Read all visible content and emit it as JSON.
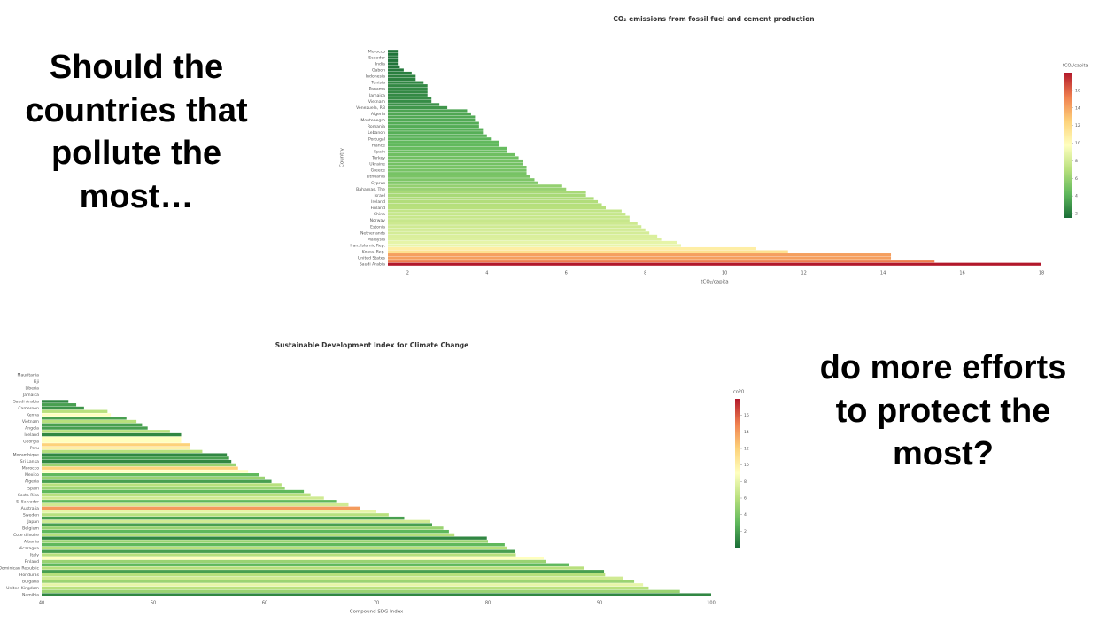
{
  "slide": {
    "left_text": "Should the countries that pollute the most…",
    "right_text": "do more efforts to protect the most?"
  },
  "chart_data": [
    {
      "type": "bar",
      "orientation": "h",
      "title": "CO₂ emissions from fossil fuel and cement production",
      "x_label": "tCO₂/capita",
      "y_label": "Country",
      "colorbar_title": "tCO₂/capita",
      "categories": [
        "Morocco",
        null,
        "Ecuador",
        null,
        "India",
        null,
        "Gabon",
        null,
        "Indonesia",
        null,
        "Tunisia",
        null,
        "Panama",
        null,
        "Jamaica",
        null,
        "Vietnam",
        null,
        "Venezuela, RB",
        null,
        "Algeria",
        null,
        "Montenegro",
        null,
        "Romania",
        null,
        "Lebanon",
        null,
        "Portugal",
        null,
        "France",
        null,
        "Spain",
        null,
        "Turkey",
        null,
        "Ukraine",
        null,
        "Greece",
        null,
        "Lithuania",
        null,
        "Cyprus",
        null,
        "Bahamas, The",
        null,
        "Israel",
        null,
        "Ireland",
        null,
        "Finland",
        null,
        "China",
        null,
        "Norway",
        null,
        "Estonia",
        null,
        "Netherlands",
        null,
        "Malaysia",
        null,
        "Iran, Islamic Rep.",
        null,
        "Korea, Rep.",
        null,
        "United States",
        null,
        "Saudi Arabia"
      ],
      "values": [
        1.75,
        1.75,
        1.75,
        1.75,
        1.75,
        1.8,
        1.9,
        2.1,
        2.2,
        2.2,
        2.4,
        2.5,
        2.5,
        2.5,
        2.5,
        2.6,
        2.6,
        2.8,
        3.0,
        3.5,
        3.6,
        3.7,
        3.7,
        3.8,
        3.8,
        3.9,
        3.9,
        4.0,
        4.1,
        4.3,
        4.3,
        4.5,
        4.5,
        4.7,
        4.8,
        4.9,
        4.9,
        5.0,
        5.0,
        5.0,
        5.1,
        5.2,
        5.3,
        5.9,
        6.0,
        6.5,
        6.5,
        6.7,
        6.8,
        6.9,
        7.0,
        7.4,
        7.5,
        7.6,
        7.6,
        7.8,
        7.9,
        8.0,
        8.1,
        8.3,
        8.4,
        8.8,
        8.9,
        10.8,
        11.6,
        14.2,
        14.2,
        15.3,
        18
      ],
      "xlim": [
        1.5,
        18
      ],
      "xticks": [
        2,
        4,
        6,
        8,
        10,
        12,
        14,
        16,
        18
      ],
      "clim": [
        1.5,
        18
      ],
      "cticks": [
        2,
        4,
        6,
        8,
        10,
        12,
        14,
        16
      ],
      "colorscale": [
        "#1a6e37",
        "#5fb85c",
        "#b8e07d",
        "#ffffbf",
        "#fdd27a",
        "#f0804f",
        "#b2182b"
      ]
    },
    {
      "type": "bar",
      "orientation": "h",
      "title": "Sustainable Development Index for Climate Change",
      "x_label": "Compound SDG Index",
      "colorbar_title": "co20",
      "categories": [
        "Mauritania",
        null,
        "Fiji",
        null,
        "Liberia",
        null,
        "Jamaica",
        null,
        "Saudi Arabia",
        null,
        "Cameroon",
        null,
        "Kenya",
        null,
        "Vietnam",
        null,
        "Angola",
        null,
        "Iceland",
        null,
        "Georgia",
        null,
        "Peru",
        null,
        "Mozambique",
        null,
        "Sri Lanka",
        null,
        "Morocco",
        null,
        "Mexico",
        null,
        "Algeria",
        null,
        "Spain",
        null,
        "Costa Rica",
        null,
        "El Salvador",
        null,
        "Australia",
        null,
        "Sweden",
        null,
        "Japan",
        null,
        "Belgium",
        null,
        "Cote d'Ivoire",
        null,
        "Albania",
        null,
        "Nicaragua",
        null,
        "Italy",
        null,
        "Finland",
        null,
        "Dominican Republic",
        null,
        "Honduras",
        null,
        "Bulgaria",
        null,
        "United Kingdom",
        null,
        "Namibia"
      ],
      "values": [
        38,
        38.5,
        39,
        39.2,
        39.5,
        39.7,
        39.9,
        40.0,
        42.4,
        43.1,
        43.8,
        45.9,
        46.2,
        47.6,
        48.5,
        49.0,
        49.5,
        51.5,
        52.5,
        52.5,
        52.5,
        53.3,
        53.3,
        54.4,
        56.6,
        56.8,
        57.0,
        57.4,
        57.6,
        58.5,
        59.5,
        60.0,
        60.6,
        61.5,
        61.8,
        63.5,
        64.1,
        65.3,
        66.4,
        67.5,
        68.5,
        70.0,
        71.1,
        72.5,
        74.8,
        75.0,
        76.0,
        76.5,
        77.0,
        79.9,
        80.0,
        81.5,
        81.7,
        82.4,
        82.5,
        85.0,
        85.2,
        87.3,
        88.6,
        90.4,
        90.5,
        92.1,
        93.1,
        93.9,
        94.4,
        97.2,
        100
      ],
      "color_values": [
        1,
        1,
        1,
        1,
        1,
        1,
        1,
        1,
        1,
        2,
        1.5,
        6,
        9,
        2,
        6,
        2,
        2,
        6,
        1,
        9,
        9,
        12,
        10,
        6,
        1,
        2,
        1,
        5,
        12,
        9,
        3,
        5,
        2,
        6,
        5,
        3,
        6,
        7,
        3,
        7,
        14,
        8,
        6,
        2,
        7,
        2,
        5,
        3,
        6,
        1,
        5,
        3,
        6,
        2,
        6,
        9,
        5,
        3,
        6,
        2,
        6,
        7,
        5,
        8,
        6,
        5,
        1
      ],
      "xlim": [
        40,
        100
      ],
      "xticks": [
        40,
        50,
        60,
        70,
        80,
        90,
        100
      ],
      "clim": [
        0,
        18
      ],
      "cticks": [
        2,
        4,
        6,
        8,
        10,
        12,
        14,
        16
      ],
      "colorscale": [
        "#1a6e37",
        "#5fb85c",
        "#b8e07d",
        "#ffffbf",
        "#fdd27a",
        "#f0804f",
        "#b2182b"
      ]
    }
  ]
}
